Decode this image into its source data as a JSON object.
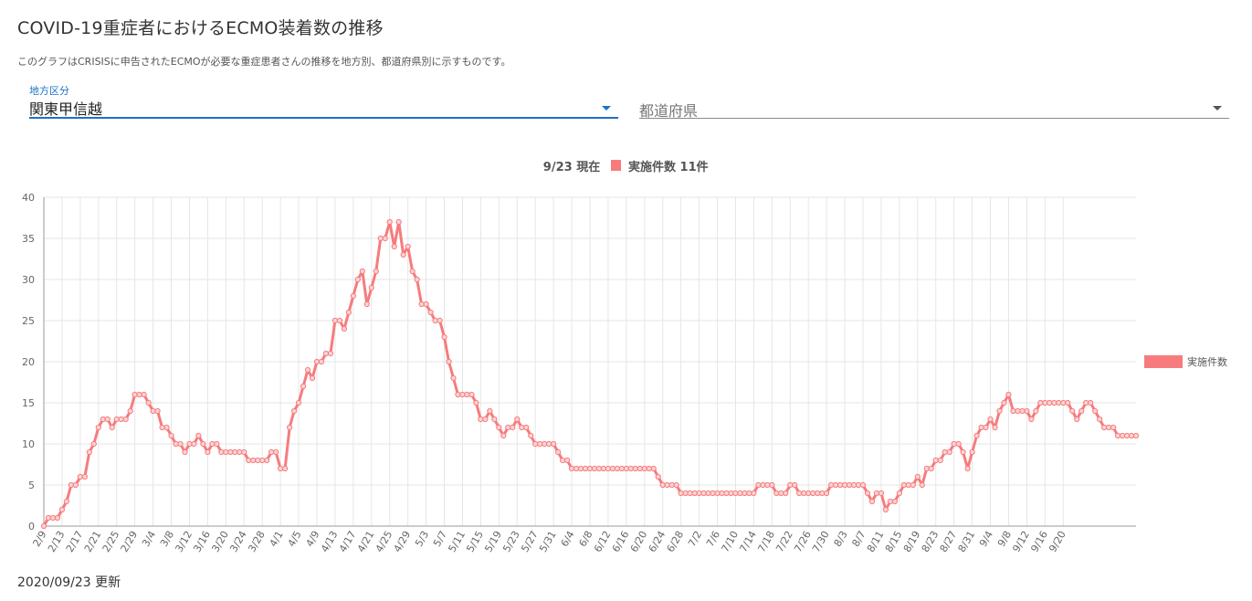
{
  "page": {
    "title": "COVID-19重症者におけるECMO装着数の推移",
    "description": "このグラフはCRISISに申告されたECMOが必要な重症患者さんの推移を地方別、都道府県別に示すものです。",
    "updated": "2020/09/23 更新"
  },
  "filters": {
    "region": {
      "label": "地方区分",
      "value": "関東甲信越"
    },
    "prefecture": {
      "placeholder": "都道府県",
      "value": ""
    }
  },
  "colors": {
    "series": "#f77b7d",
    "accent": "#1a73c8",
    "grid": "#e6e6e6"
  },
  "chart_data": {
    "type": "line",
    "title": "9/23 現在",
    "summary": "実施件数 11件",
    "legend": {
      "label": "実施件数",
      "placement": "right"
    },
    "ylim": [
      0,
      40
    ],
    "yticks": [
      0,
      5,
      10,
      15,
      20,
      25,
      30,
      35,
      40
    ],
    "grid": true,
    "x_tick_labels": [
      "2/9",
      "2/13",
      "2/17",
      "2/21",
      "2/25",
      "2/29",
      "3/4",
      "3/8",
      "3/12",
      "3/16",
      "3/20",
      "3/24",
      "3/28",
      "4/1",
      "4/5",
      "4/9",
      "4/13",
      "4/17",
      "4/21",
      "4/25",
      "4/29",
      "5/3",
      "5/7",
      "5/11",
      "5/15",
      "5/19",
      "5/23",
      "5/27",
      "5/31",
      "6/4",
      "6/8",
      "6/12",
      "6/16",
      "6/20",
      "6/24",
      "6/28",
      "7/2",
      "7/6",
      "7/10",
      "7/14",
      "7/18",
      "7/22",
      "7/26",
      "7/30",
      "8/3",
      "8/7",
      "8/11",
      "8/15",
      "8/19",
      "8/23",
      "8/27",
      "8/31",
      "9/4",
      "9/8",
      "9/12",
      "9/16",
      "9/20"
    ],
    "series": [
      {
        "name": "実施件数",
        "x_start": "2/9",
        "x_end": "9/23",
        "values": [
          0,
          1,
          1,
          1,
          2,
          3,
          5,
          5,
          6,
          6,
          9,
          10,
          12,
          13,
          13,
          12,
          13,
          13,
          13,
          14,
          16,
          16,
          16,
          15,
          14,
          14,
          12,
          12,
          11,
          10,
          10,
          9,
          10,
          10,
          11,
          10,
          9,
          10,
          10,
          9,
          9,
          9,
          9,
          9,
          9,
          8,
          8,
          8,
          8,
          8,
          9,
          9,
          7,
          7,
          12,
          14,
          15,
          17,
          19,
          18,
          20,
          20,
          21,
          21,
          25,
          25,
          24,
          26,
          28,
          30,
          31,
          27,
          29,
          31,
          35,
          35,
          37,
          34,
          37,
          33,
          34,
          31,
          30,
          27,
          27,
          26,
          25,
          25,
          23,
          20,
          18,
          16,
          16,
          16,
          16,
          15,
          13,
          13,
          14,
          13,
          12,
          11,
          12,
          12,
          13,
          12,
          12,
          11,
          10,
          10,
          10,
          10,
          10,
          9,
          8,
          8,
          7,
          7,
          7,
          7,
          7,
          7,
          7,
          7,
          7,
          7,
          7,
          7,
          7,
          7,
          7,
          7,
          7,
          7,
          7,
          6,
          5,
          5,
          5,
          5,
          4,
          4,
          4,
          4,
          4,
          4,
          4,
          4,
          4,
          4,
          4,
          4,
          4,
          4,
          4,
          4,
          4,
          5,
          5,
          5,
          5,
          4,
          4,
          4,
          5,
          5,
          4,
          4,
          4,
          4,
          4,
          4,
          4,
          5,
          5,
          5,
          5,
          5,
          5,
          5,
          5,
          4,
          3,
          4,
          4,
          2,
          3,
          3,
          4,
          5,
          5,
          5,
          6,
          5,
          7,
          7,
          8,
          8,
          9,
          9,
          10,
          10,
          9,
          7,
          9,
          11,
          12,
          12,
          13,
          12,
          14,
          15,
          16,
          14,
          14,
          14,
          14,
          13,
          14,
          15,
          15,
          15,
          15,
          15,
          15,
          15,
          14,
          13,
          14,
          15,
          15,
          14,
          13,
          12,
          12,
          12,
          11,
          11,
          11,
          11,
          11
        ]
      }
    ]
  }
}
